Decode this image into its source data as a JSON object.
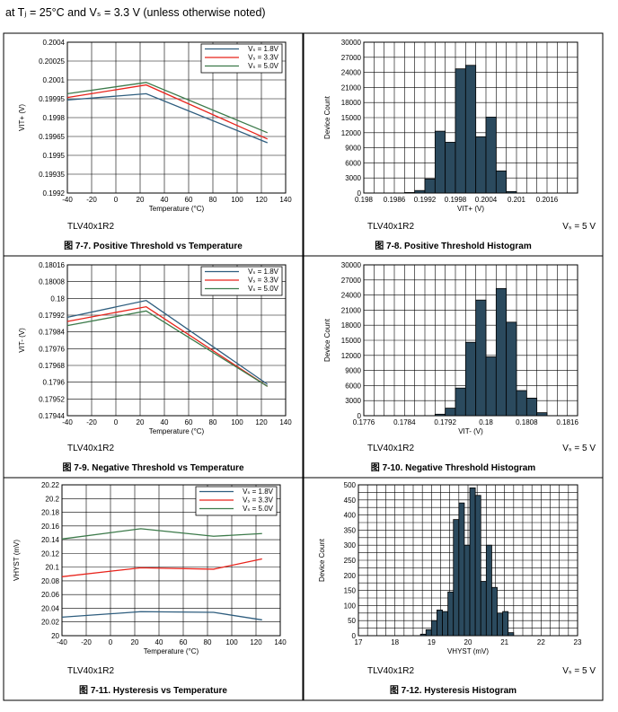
{
  "header": {
    "text": "at Tⱼ = 25°C and Vₛ = 3.3 V (unless otherwise noted)"
  },
  "chart_data": [
    {
      "type": "line",
      "title": "图 7-7. Positive Threshold vs Temperature",
      "part": "TLV40x1R2",
      "note": "",
      "xlabel": "Temperature (°C)",
      "ylabel": "V_IT+ (V)",
      "x": [
        -40,
        25,
        125
      ],
      "xlim": [
        -40,
        140
      ],
      "xticks": [
        -40,
        -20,
        0,
        20,
        40,
        60,
        80,
        100,
        120,
        140
      ],
      "xtick_labels": [
        "-40",
        "-20",
        "0",
        "20",
        "40",
        "60",
        "80",
        "100",
        "120",
        "140"
      ],
      "ylim": [
        0.1992,
        0.2004
      ],
      "yticks": [
        0.1992,
        0.19935,
        0.1995,
        0.19965,
        0.1998,
        0.19995,
        0.2001,
        0.20025,
        0.2004
      ],
      "ytick_labels": [
        "0.1992",
        "0.19935",
        "0.1995",
        "0.19965",
        "0.1998",
        "0.19995",
        "0.2001",
        "0.20025",
        "0.2004"
      ],
      "legend_position": "top-right",
      "series": [
        {
          "name": "Vₛ = 1.8V",
          "color": "#2e5d7e",
          "values": [
            0.19994,
            0.19999,
            0.1996
          ]
        },
        {
          "name": "Vₛ = 3.3V",
          "color": "#e8231b",
          "values": [
            0.19996,
            0.20006,
            0.19963
          ]
        },
        {
          "name": "Vₛ = 5.0V",
          "color": "#3c7a4a",
          "values": [
            0.19999,
            0.20008,
            0.19968
          ]
        }
      ]
    },
    {
      "type": "bar",
      "title": "图 7-8. Positive Threshold Histogram",
      "part": "TLV40x1R2",
      "note": "Vₛ = 5 V",
      "xlabel": "V_IT+ (V)",
      "ylabel": "Device Count",
      "bar_color": "#2b4a5e",
      "bin_width": 0.0002,
      "bin_starts": [
        0.1986,
        0.1988,
        0.199,
        0.1992,
        0.1994,
        0.1996,
        0.1998,
        0.2,
        0.2002,
        0.2004,
        0.2006,
        0.2008
      ],
      "values": [
        0,
        100,
        500,
        2800,
        12300,
        10100,
        24700,
        25400,
        11200,
        15100,
        4400,
        300
      ],
      "xlim": [
        0.198,
        0.2022
      ],
      "xticks": [
        0.198,
        0.1986,
        0.1992,
        0.1998,
        0.2004,
        0.201,
        0.2016
      ],
      "xtick_labels": [
        "0.198",
        "0.1986",
        "0.1992",
        "0.1998",
        "0.2004",
        "0.201",
        "0.2016"
      ],
      "ylim": [
        0,
        30000
      ],
      "yticks": [
        0,
        3000,
        6000,
        9000,
        12000,
        15000,
        18000,
        21000,
        24000,
        27000,
        30000
      ],
      "ytick_labels": [
        "0",
        "3000",
        "6000",
        "9000",
        "12000",
        "15000",
        "18000",
        "21000",
        "24000",
        "27000",
        "30000"
      ]
    },
    {
      "type": "line",
      "title": "图 7-9. Negative Threshold vs Temperature",
      "part": "TLV40x1R2",
      "note": "",
      "xlabel": "Temperature (°C)",
      "ylabel": "V_IT- (V)",
      "x": [
        -40,
        25,
        125
      ],
      "xlim": [
        -40,
        140
      ],
      "xticks": [
        -40,
        -20,
        0,
        20,
        40,
        60,
        80,
        100,
        120,
        140
      ],
      "xtick_labels": [
        "-40",
        "-20",
        "0",
        "20",
        "40",
        "60",
        "80",
        "100",
        "120",
        "140"
      ],
      "ylim": [
        0.17944,
        0.18016
      ],
      "yticks": [
        0.17944,
        0.17952,
        0.1796,
        0.17968,
        0.17976,
        0.17984,
        0.17992,
        0.18,
        0.18008,
        0.18016
      ],
      "ytick_labels": [
        "0.17944",
        "0.17952",
        "0.1796",
        "0.17968",
        "0.17976",
        "0.17984",
        "0.17992",
        "0.18",
        "0.18008",
        "0.18016"
      ],
      "legend_position": "top-right",
      "series": [
        {
          "name": "Vₛ = 1.8V",
          "color": "#2e5d7e",
          "values": [
            0.17991,
            0.17999,
            0.17959
          ]
        },
        {
          "name": "Vₛ = 3.3V",
          "color": "#e8231b",
          "values": [
            0.17989,
            0.17996,
            0.17958
          ]
        },
        {
          "name": "Vₛ = 5.0V",
          "color": "#3c7a4a",
          "values": [
            0.17987,
            0.17994,
            0.17958
          ]
        }
      ]
    },
    {
      "type": "bar",
      "title": "图 7-10. Negative Threshold Histogram",
      "part": "TLV40x1R2",
      "note": "Vₛ = 5 V",
      "xlabel": "V_IT- (V)",
      "ylabel": "Device Count",
      "bar_color": "#2b4a5e",
      "bin_width": 0.0002,
      "bin_starts": [
        0.179,
        0.1792,
        0.1794,
        0.1796,
        0.1798,
        0.18,
        0.1802,
        0.1804,
        0.1806,
        0.1808
      ],
      "values": [
        300,
        1500,
        5500,
        14600,
        23000,
        11700,
        25300,
        18600,
        5000,
        3500
      ],
      "extra_bins": [
        {
          "start": 0.181,
          "value": 600
        }
      ],
      "xlim": [
        0.1776,
        0.1818
      ],
      "xticks": [
        0.1776,
        0.1784,
        0.1792,
        0.18,
        0.1808,
        0.1816
      ],
      "xtick_labels": [
        "0.1776",
        "0.1784",
        "0.1792",
        "0.18",
        "0.1808",
        "0.1816"
      ],
      "ylim": [
        0,
        30000
      ],
      "yticks": [
        0,
        3000,
        6000,
        9000,
        12000,
        15000,
        18000,
        21000,
        24000,
        27000,
        30000
      ],
      "ytick_labels": [
        "0",
        "3000",
        "6000",
        "9000",
        "12000",
        "15000",
        "18000",
        "21000",
        "24000",
        "27000",
        "30000"
      ]
    },
    {
      "type": "line",
      "title": "图 7-11. Hysteresis vs Temperature",
      "part": "TLV40x1R2",
      "note": "",
      "xlabel": "Temperature (°C)",
      "ylabel": "V_HYST (mV)",
      "x": [
        -40,
        25,
        85,
        125
      ],
      "xlim": [
        -40,
        140
      ],
      "xticks": [
        -40,
        -20,
        0,
        20,
        40,
        60,
        80,
        100,
        120,
        140
      ],
      "xtick_labels": [
        "-40",
        "-20",
        "0",
        "20",
        "40",
        "60",
        "80",
        "100",
        "120",
        "140"
      ],
      "ylim": [
        20,
        20.22
      ],
      "yticks": [
        20,
        20.02,
        20.04,
        20.06,
        20.08,
        20.1,
        20.12,
        20.14,
        20.16,
        20.18,
        20.2,
        20.22
      ],
      "ytick_labels": [
        "20",
        "20.02",
        "20.04",
        "20.06",
        "20.08",
        "20.1",
        "20.12",
        "20.14",
        "20.16",
        "20.18",
        "20.2",
        "20.22"
      ],
      "legend_position": "top-right",
      "series": [
        {
          "name": "Vₛ = 1.8V",
          "color": "#2e5d7e",
          "values": [
            20.027,
            20.035,
            20.034,
            20.023
          ]
        },
        {
          "name": "Vₛ = 3.3V",
          "color": "#e8231b",
          "values": [
            20.086,
            20.099,
            20.097,
            20.112
          ]
        },
        {
          "name": "Vₛ = 5.0V",
          "color": "#3c7a4a",
          "values": [
            20.141,
            20.156,
            20.145,
            20.149
          ]
        }
      ]
    },
    {
      "type": "bar",
      "title": "图 7-12. Hysteresis Histogram",
      "part": "TLV40x1R2",
      "note": "Vₛ = 5 V",
      "xlabel": "V_HYST (mV)",
      "ylabel": "Device Count",
      "bar_color": "#2b4a5e",
      "bin_width": 0.15,
      "bin_starts": [
        18.7,
        18.85,
        19.0,
        19.15,
        19.3,
        19.45,
        19.6,
        19.75,
        19.9,
        20.05,
        20.2,
        20.35,
        20.5,
        20.65,
        20.8,
        20.95,
        21.1
      ],
      "values": [
        5,
        20,
        50,
        85,
        80,
        145,
        385,
        440,
        300,
        490,
        465,
        180,
        300,
        160,
        75,
        80,
        10
      ],
      "xlim": [
        17,
        23
      ],
      "xticks": [
        17,
        18,
        19,
        20,
        21,
        22,
        23
      ],
      "xtick_labels": [
        "17",
        "18",
        "19",
        "20",
        "21",
        "22",
        "23"
      ],
      "ylim": [
        0,
        500
      ],
      "yticks": [
        0,
        25,
        50,
        75,
        100,
        125,
        150,
        175,
        200,
        225,
        250,
        275,
        300,
        325,
        350,
        375,
        400,
        425,
        450,
        475,
        500
      ],
      "ytick_labels": [
        "0",
        "",
        "50",
        "",
        "100",
        "",
        "150",
        "",
        "200",
        "",
        "250",
        "",
        "300",
        "",
        "350",
        "",
        "400",
        "",
        "450",
        "",
        "500"
      ],
      "ylabel_ticks_step": 50
    }
  ]
}
